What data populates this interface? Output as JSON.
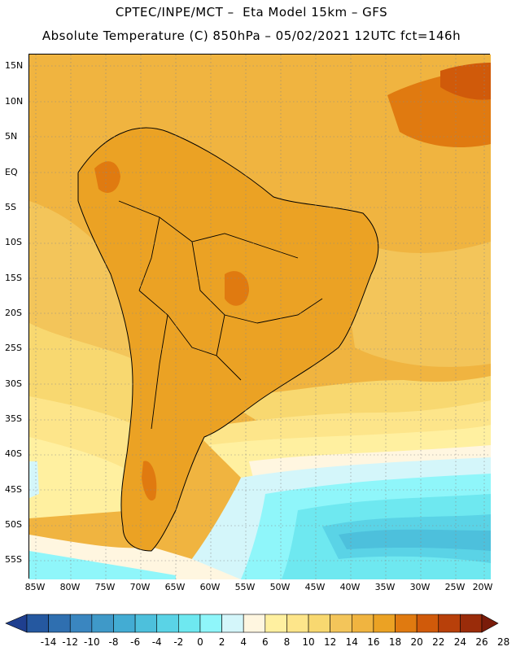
{
  "header": {
    "line1": "CPTEC/INPE/MCT –  Eta Model 15km – GFS",
    "line2": "Absolute Temperature (C) 850hPa – 05/02/2021 12UTC fct=146h"
  },
  "axes": {
    "lat_labels": [
      "15N",
      "10N",
      "5N",
      "EQ",
      "5S",
      "10S",
      "15S",
      "20S",
      "25S",
      "30S",
      "35S",
      "40S",
      "45S",
      "50S",
      "55S"
    ],
    "lon_labels": [
      "85W",
      "80W",
      "75W",
      "70W",
      "65W",
      "60W",
      "55W",
      "50W",
      "45W",
      "40W",
      "35W",
      "30W",
      "25W",
      "20W"
    ]
  },
  "colorbar": {
    "labels": [
      "-14",
      "-12",
      "-10",
      "-8",
      "-6",
      "-4",
      "-2",
      "0",
      "2",
      "4",
      "6",
      "8",
      "10",
      "12",
      "14",
      "16",
      "18",
      "20",
      "22",
      "24",
      "26",
      "28"
    ],
    "colors": [
      "#1f3f8f",
      "#2558a0",
      "#2f6fb0",
      "#3a86c0",
      "#3f99c8",
      "#43acd3",
      "#4dc0dc",
      "#5ad3e6",
      "#6ee8f0",
      "#8ff6fa",
      "#d4f6fa",
      "#fff6e0",
      "#fff0a0",
      "#fde58a",
      "#f8d870",
      "#f3c55a",
      "#f0b440",
      "#eba224",
      "#e07a10",
      "#d05a0a",
      "#b8400a",
      "#9a2c0a",
      "#7a1c0a"
    ]
  },
  "field": {
    "colors": {
      "t20": "#eba224",
      "t18": "#f0b440",
      "t16": "#f3c55a",
      "t14": "#f8d870",
      "t12": "#fde58a",
      "t10": "#fff0a0",
      "t8": "#fff6e0",
      "t6": "#d4f6fa",
      "t4": "#8ff6fa",
      "t2": "#6ee8f0",
      "t0": "#5ad3e6",
      "tm2": "#4dc0dc",
      "t22": "#e07a10",
      "t24": "#d05a0a"
    }
  }
}
